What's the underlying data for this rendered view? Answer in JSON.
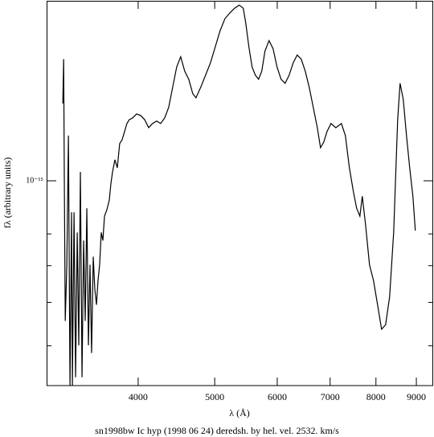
{
  "chart_data": {
    "type": "line",
    "xlabel": "λ (Å)",
    "ylabel": "fλ (arbitrary units)",
    "caption": "sn1998bw Ic hyp (1998 06 24) deredsh. by hel. vel.  2532. km/s",
    "xscale": "log",
    "yscale": "log",
    "color": "#000000",
    "xlim": [
      3063,
      9453
    ],
    "xticks": [
      4000,
      5000,
      6000,
      7000,
      8000,
      9000
    ],
    "ylim": [
      4.23e-16,
      2.13e-15
    ],
    "yticks": [
      {
        "value": 1e-15,
        "label": "10⁻¹⁵"
      }
    ],
    "yminor_ticks": [
      5e-16,
      6e-16,
      7e-16,
      8e-16
    ],
    "x": [
      3211,
      3219,
      3226,
      3234,
      3249,
      3264,
      3279,
      3294,
      3302,
      3318,
      3333,
      3349,
      3364,
      3380,
      3396,
      3412,
      3428,
      3444,
      3460,
      3476,
      3492,
      3509,
      3525,
      3542,
      3558,
      3575,
      3592,
      3609,
      3626,
      3651,
      3677,
      3694,
      3712,
      3738,
      3764,
      3790,
      3817,
      3844,
      3871,
      3898,
      3935,
      3981,
      4028,
      4076,
      4124,
      4172,
      4221,
      4271,
      4321,
      4372,
      4423,
      4475,
      4528,
      4581,
      4635,
      4690,
      4734,
      4800,
      4868,
      4937,
      5007,
      5078,
      5150,
      5222,
      5296,
      5371,
      5434,
      5473,
      5524,
      5576,
      5629,
      5682,
      5735,
      5789,
      5858,
      5927,
      5997,
      6067,
      6139,
      6211,
      6284,
      6358,
      6434,
      6510,
      6586,
      6664,
      6743,
      6806,
      6870,
      6935,
      7017,
      7116,
      7233,
      7318,
      7404,
      7492,
      7562,
      7634,
      7688,
      7760,
      7851,
      7944,
      8038,
      8132,
      8228,
      8325,
      8424,
      8523,
      8583,
      8663,
      8745,
      8827,
      8910,
      8973
    ],
    "values": [
      1.384e-15,
      1.667e-15,
      9.54e-16,
      5.55e-16,
      7.03e-16,
      1.209e-15,
      4.23e-16,
      8.76e-16,
      4.23e-16,
      8.76e-16,
      4.38e-16,
      8.05e-16,
      5.01e-16,
      1.038e-15,
      4.38e-16,
      7.78e-16,
      5.55e-16,
      8.91e-16,
      5.01e-16,
      7.03e-16,
      4.85e-16,
      7.27e-16,
      6.35e-16,
      5.94e-16,
      6.57e-16,
      7.03e-16,
      8.05e-16,
      7.78e-16,
      8.62e-16,
      8.85e-16,
      9.22e-16,
      9.87e-16,
      1.038e-15,
      1.092e-15,
      1.056e-15,
      1.169e-15,
      1.188e-15,
      1.229e-15,
      1.272e-15,
      1.293e-15,
      1.302e-15,
      1.324e-15,
      1.316e-15,
      1.293e-15,
      1.25e-15,
      1.272e-15,
      1.285e-15,
      1.272e-15,
      1.302e-15,
      1.361e-15,
      1.481e-15,
      1.612e-15,
      1.684e-15,
      1.585e-15,
      1.532e-15,
      1.442e-15,
      1.417e-15,
      1.481e-15,
      1.558e-15,
      1.64e-15,
      1.754e-15,
      1.877e-15,
      1.975e-15,
      2.022e-15,
      2.064e-15,
      2.092e-15,
      2.064e-15,
      1.942e-15,
      1.754e-15,
      1.612e-15,
      1.558e-15,
      1.532e-15,
      1.585e-15,
      1.725e-15,
      1.802e-15,
      1.742e-15,
      1.612e-15,
      1.532e-15,
      1.506e-15,
      1.558e-15,
      1.64e-15,
      1.696e-15,
      1.667e-15,
      1.585e-15,
      1.481e-15,
      1.361e-15,
      1.25e-15,
      1.149e-15,
      1.176e-15,
      1.229e-15,
      1.272e-15,
      1.25e-15,
      1.272e-15,
      1.209e-15,
      1.056e-15,
      9.54e-16,
      8.91e-16,
      8.62e-16,
      9.37e-16,
      8.33e-16,
      7.03e-16,
      6.57e-16,
      5.94e-16,
      5.36e-16,
      5.46e-16,
      6.14e-16,
      8.05e-16,
      1.293e-15,
      1.506e-15,
      1.408e-15,
      1.209e-15,
      1.056e-15,
      9.37e-16,
      8.11e-16
    ]
  }
}
